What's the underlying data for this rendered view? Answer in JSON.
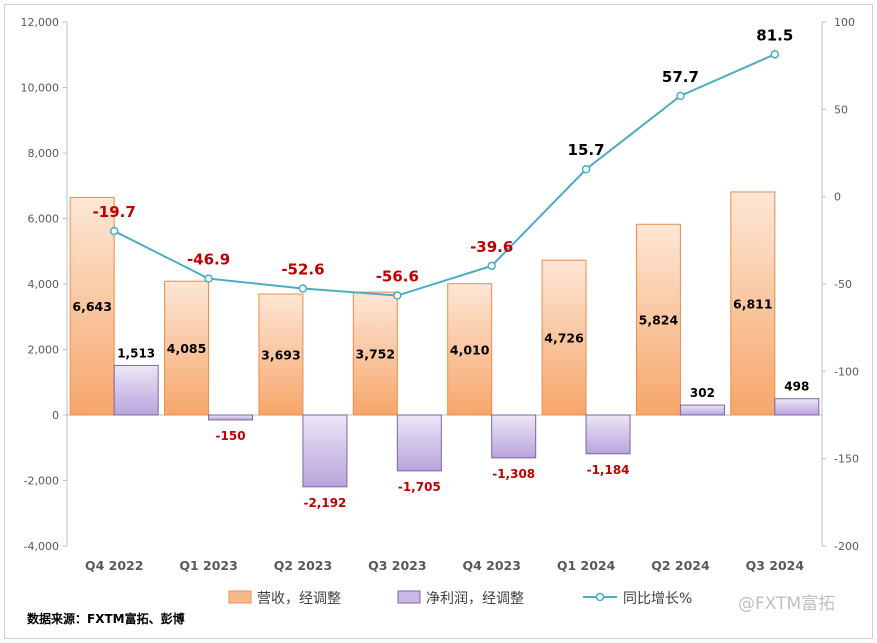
{
  "chart_data": {
    "type": "bar",
    "categories": [
      "Q4 2022",
      "Q1 2023",
      "Q2 2023",
      "Q3 2023",
      "Q4 2023",
      "Q1 2024",
      "Q2 2024",
      "Q3 2024"
    ],
    "series": [
      {
        "name": "营收，经调整",
        "type": "bar",
        "axis": "left",
        "color": "#f8b98a",
        "values": [
          6643,
          4085,
          3693,
          3752,
          4010,
          4726,
          5824,
          6811
        ],
        "labels": [
          "6,643",
          "4,085",
          "3,693",
          "3,752",
          "4,010",
          "4,726",
          "5,824",
          "6,811"
        ]
      },
      {
        "name": "净利润，经调整",
        "type": "bar",
        "axis": "left",
        "color": "#c8b8e8",
        "values": [
          1513,
          -150,
          -2192,
          -1705,
          -1308,
          -1184,
          302,
          498
        ],
        "labels": [
          "1,513",
          "-150",
          "-2,192",
          "-1,705",
          "-1,308",
          "-1,184",
          "302",
          "498"
        ]
      },
      {
        "name": "同比增长%",
        "type": "line",
        "axis": "right",
        "color": "#4bacc6",
        "values": [
          -19.7,
          -46.9,
          -52.6,
          -56.6,
          -39.6,
          15.7,
          57.7,
          81.5
        ],
        "labels": [
          "-19.7",
          "-46.9",
          "-52.6",
          "-56.6",
          "-39.6",
          "15.7",
          "57.7",
          "81.5"
        ]
      }
    ],
    "y_left": {
      "ylim": [
        -4000,
        12000
      ],
      "ticks": [
        -4000,
        -2000,
        0,
        2000,
        4000,
        6000,
        8000,
        10000,
        12000
      ],
      "tick_labels": [
        "-4,000",
        "-2,000",
        "0",
        "2,000",
        "4,000",
        "6,000",
        "8,000",
        "10,000",
        "12,000"
      ]
    },
    "y_right": {
      "ylim": [
        -200,
        100
      ],
      "ticks": [
        -200,
        -150,
        -100,
        -50,
        0,
        50,
        100
      ],
      "tick_labels": [
        "-200",
        "-150",
        "-100",
        "-50",
        "0",
        "50",
        "100"
      ]
    },
    "grid": false,
    "legend": "bottom"
  },
  "source_note": "数据来源：FXTM富拓、彭博",
  "watermark": "@FXTM富拓"
}
